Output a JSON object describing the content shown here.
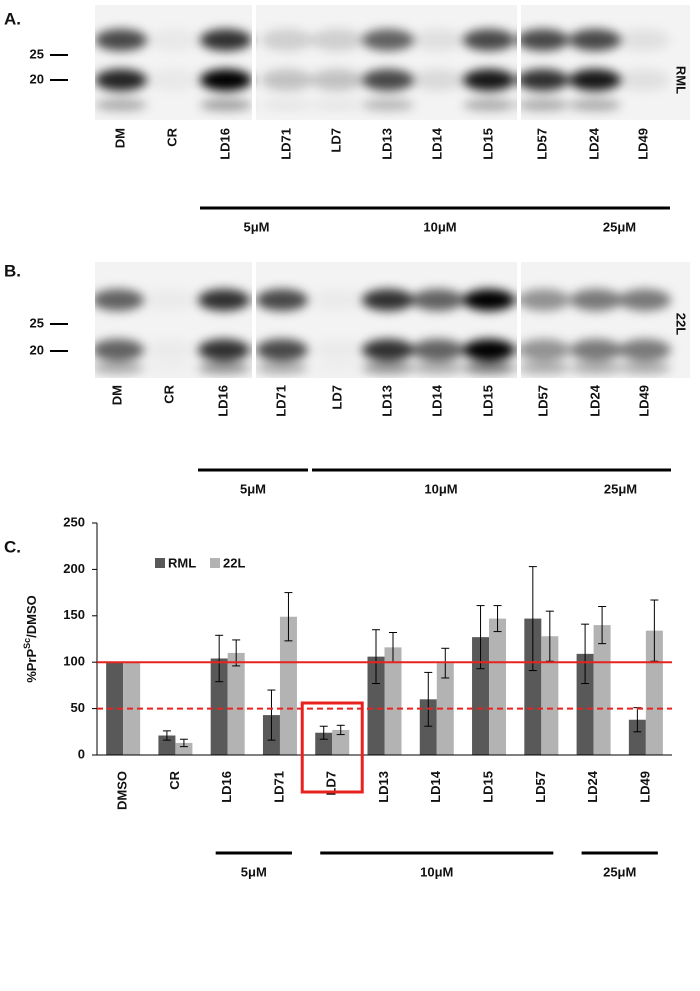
{
  "panels": {
    "A": {
      "label": "A.",
      "markers": [
        25,
        20
      ],
      "side_label": "RML",
      "lanes": [
        "DM",
        "CR",
        "LD16",
        "LD71",
        "LD7",
        "LD13",
        "LD14",
        "LD15",
        "LD57",
        "LD24",
        "LD49"
      ],
      "groups": [
        {
          "label": "5μM",
          "from": 2,
          "to": 3
        },
        {
          "label": "10μM",
          "from": 4,
          "to": 8
        },
        {
          "label": "25μM",
          "from": 9,
          "to": 10
        }
      ]
    },
    "B": {
      "label": "B.",
      "markers": [
        25,
        20
      ],
      "side_label": "22L",
      "lanes": [
        "DM",
        "CR",
        "LD16",
        "LD71",
        "LD7",
        "LD13",
        "LD14",
        "LD15",
        "LD57",
        "LD24",
        "LD49"
      ],
      "groups": [
        {
          "label": "5μM",
          "from": 2,
          "to": 3
        },
        {
          "label": "10μM",
          "from": 4,
          "to": 8
        },
        {
          "label": "25μM",
          "from": 9,
          "to": 10
        }
      ]
    }
  },
  "chart_data": {
    "type": "bar",
    "label": "C.",
    "ylabel": [
      "%PrP",
      "Sc",
      "/DMSO"
    ],
    "categories": [
      "DMSO",
      "CR",
      "LD16",
      "LD71",
      "LD7",
      "LD13",
      "LD14",
      "LD15",
      "LD57",
      "LD24",
      "LD49"
    ],
    "series": [
      {
        "name": "RML",
        "color": "#595959",
        "values": [
          100,
          21,
          104,
          43,
          24,
          106,
          60,
          127,
          147,
          109,
          38
        ],
        "errors": [
          0,
          5,
          25,
          27,
          7,
          29,
          29,
          34,
          56,
          32,
          13
        ]
      },
      {
        "name": "22L",
        "color": "#b3b3b3",
        "values": [
          100,
          13,
          110,
          149,
          27,
          116,
          99,
          147,
          128,
          140,
          134
        ],
        "errors": [
          0,
          4,
          14,
          26,
          5,
          16,
          16,
          14,
          27,
          20,
          33
        ]
      }
    ],
    "ylim": [
      0,
      250
    ],
    "yticks": [
      0,
      50,
      100,
      150,
      200,
      250
    ],
    "legend": "top-left",
    "reference_lines": [
      {
        "value": 100,
        "style": "solid",
        "color": "#e8231f"
      },
      {
        "value": 50,
        "style": "dashed",
        "color": "#e8231f"
      }
    ],
    "highlight_index": 4,
    "highlight_color": "#e8231f",
    "groups": [
      {
        "label": "5μM",
        "from": 2,
        "to": 3
      },
      {
        "label": "10μM",
        "from": 4,
        "to": 8
      },
      {
        "label": "25μM",
        "from": 9,
        "to": 10
      }
    ]
  }
}
